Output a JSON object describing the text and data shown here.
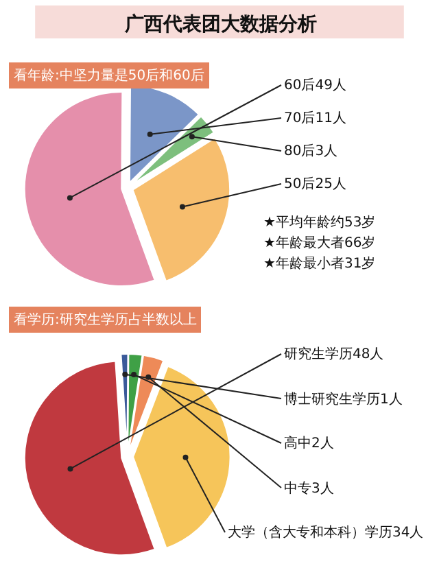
{
  "chart_data": [
    {
      "type": "pie",
      "title": "广西代表团大数据分析",
      "subtitle": "看年龄:中坚力量是50后和60后",
      "categories": [
        "60后49人",
        "70后11人",
        "80后3人",
        "50后25人"
      ],
      "values": [
        49,
        11,
        3,
        25
      ],
      "colors": [
        "#e58fab",
        "#7b96c8",
        "#7dbf7d",
        "#f7be6e"
      ],
      "annotations": [
        "★平均年龄约53岁",
        "★年龄最大者66岁",
        "★年龄最小者31岁"
      ]
    },
    {
      "type": "pie",
      "subtitle": "看学历:研究生学历占半数以上",
      "categories": [
        "研究生学历48人",
        "博士研究生学历1人",
        "高中2人",
        "中专3人",
        "大学（含大专和本科）学历34人"
      ],
      "values": [
        48,
        1,
        2,
        3,
        34
      ],
      "colors": [
        "#c0393f",
        "#3b5a9a",
        "#3fa046",
        "#ee8a58",
        "#f6c55a"
      ]
    }
  ]
}
